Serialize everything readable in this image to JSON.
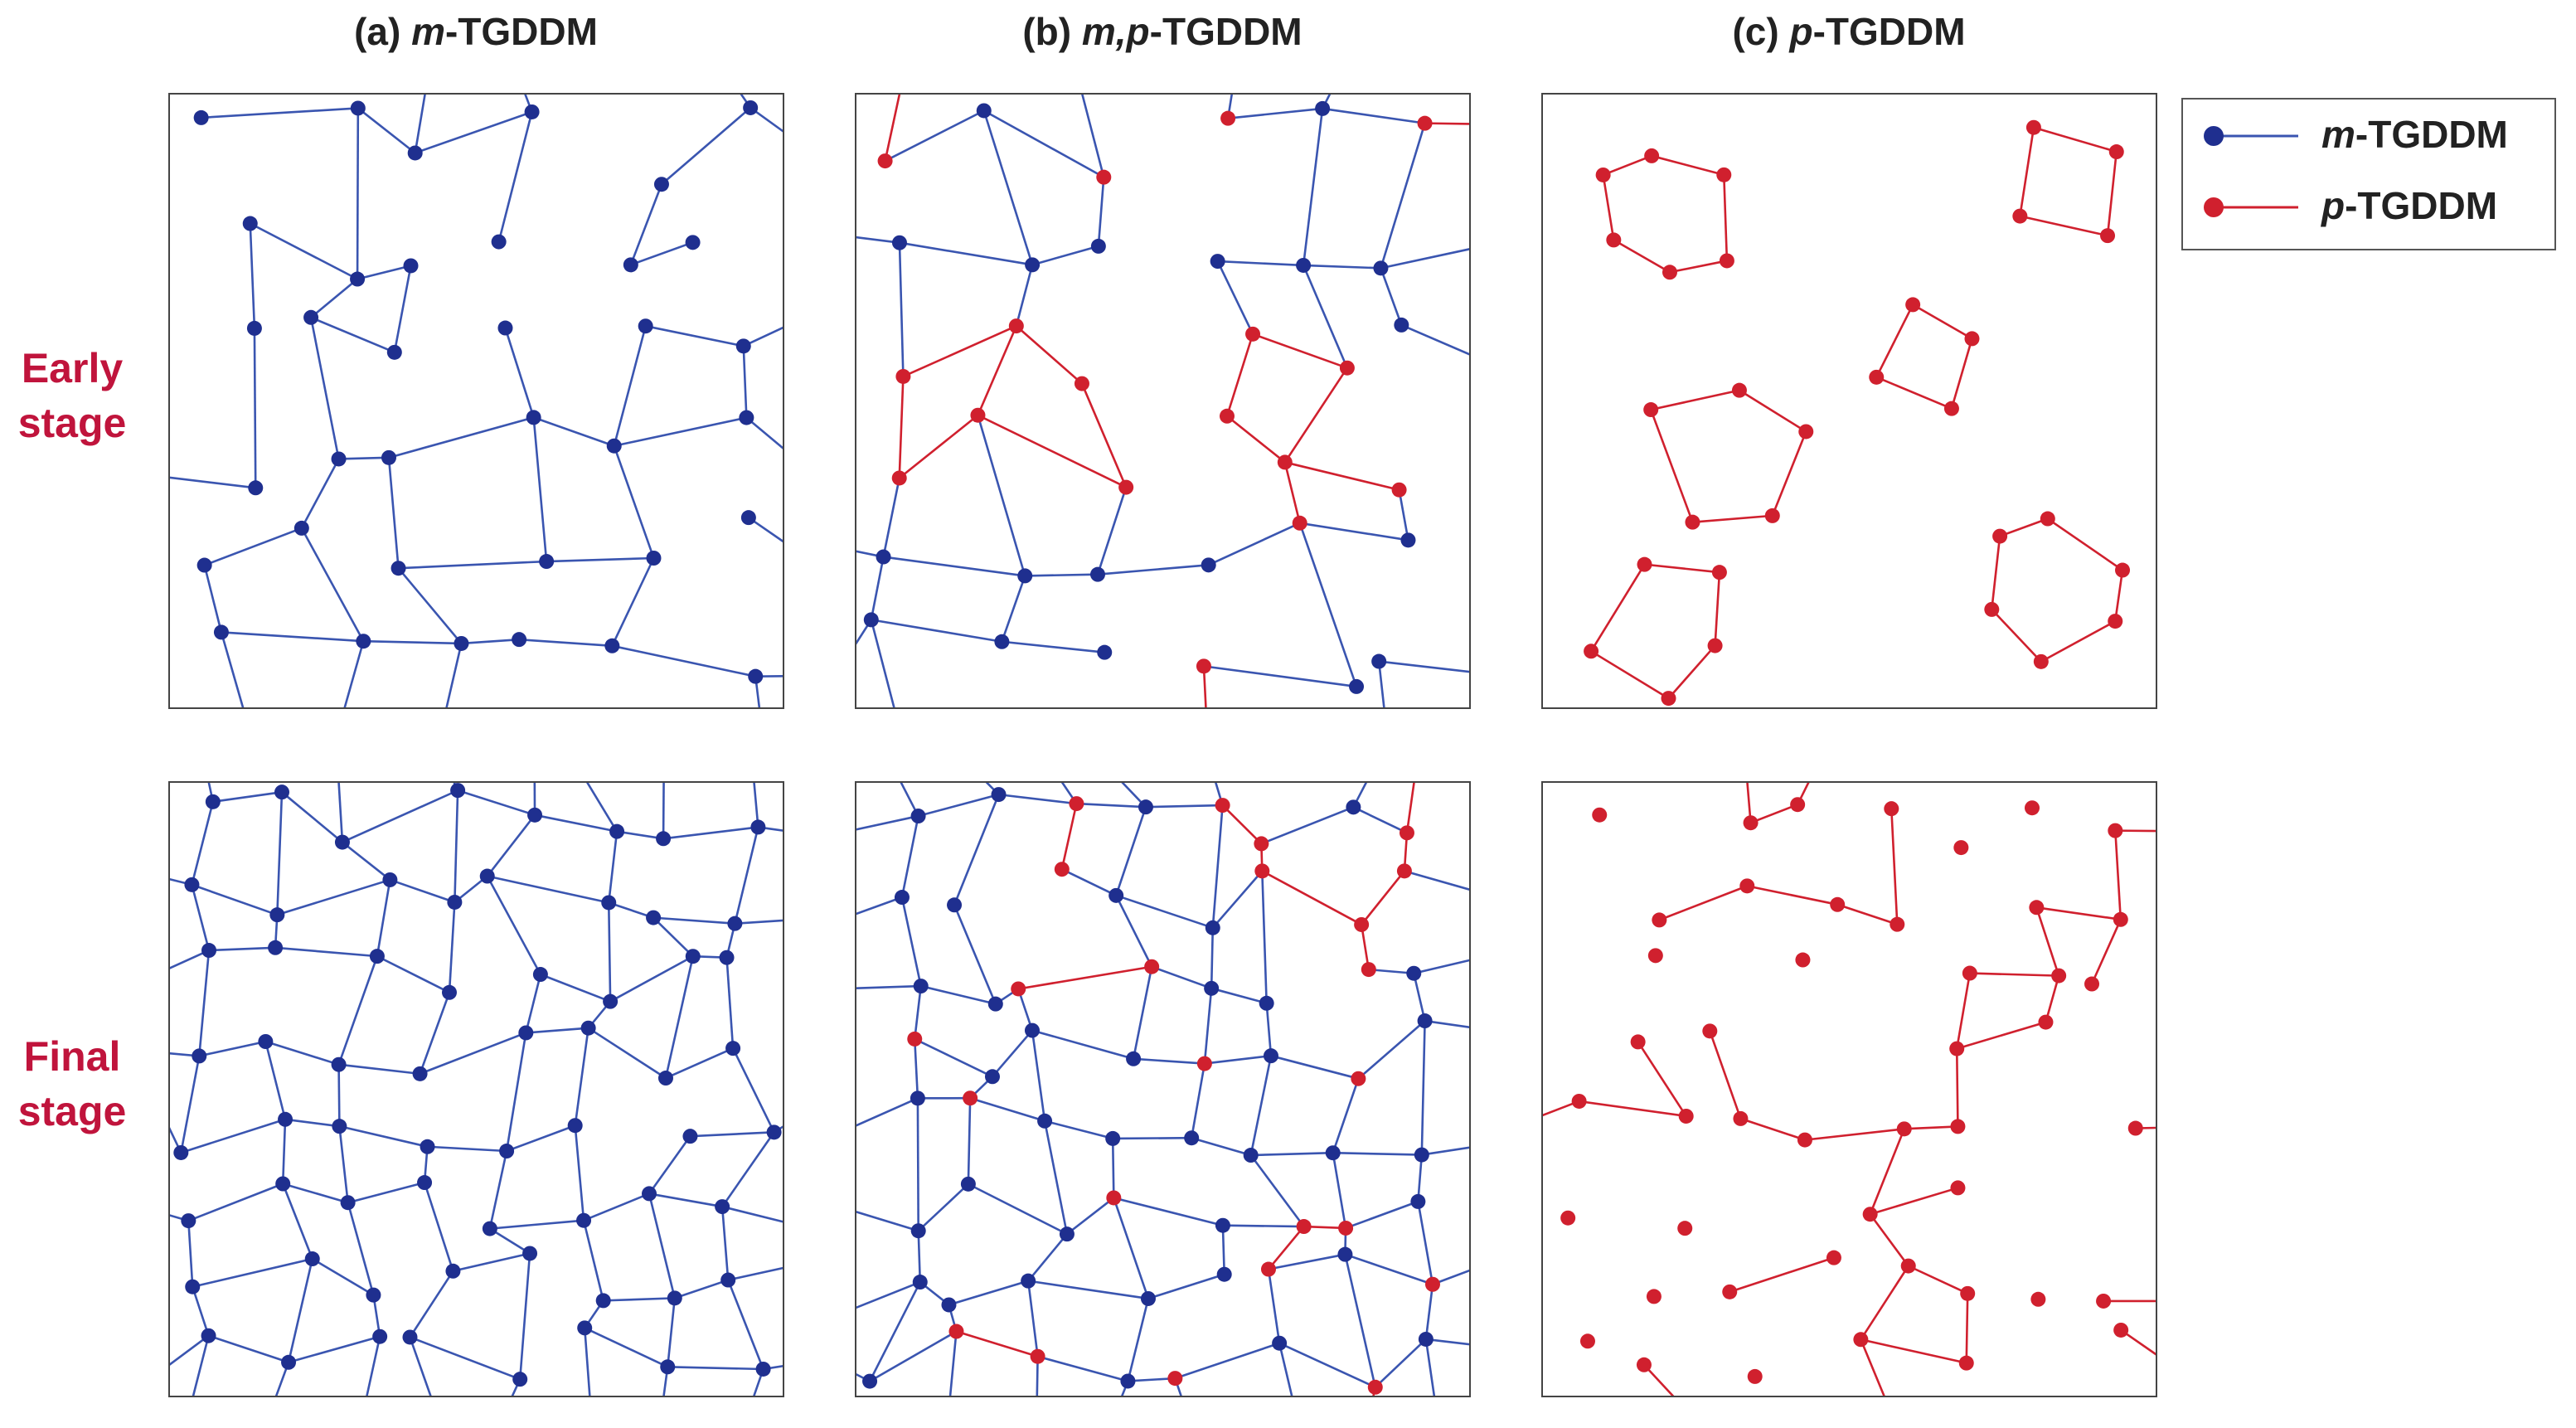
{
  "columns": [
    {
      "parts": [
        "(a) ",
        "m",
        "-TGDDM"
      ]
    },
    {
      "parts": [
        "(b) ",
        "m,p",
        "-TGDDM"
      ]
    },
    {
      "parts": [
        "(c) ",
        "p",
        "-TGDDM"
      ]
    }
  ],
  "rows": [
    {
      "lines": [
        "Early",
        "stage"
      ]
    },
    {
      "lines": [
        "Final",
        "stage"
      ]
    }
  ],
  "legend": [
    {
      "parts": [
        "m",
        "-TGDDM"
      ]
    },
    {
      "parts": [
        "p",
        "-TGDDM"
      ]
    }
  ]
}
